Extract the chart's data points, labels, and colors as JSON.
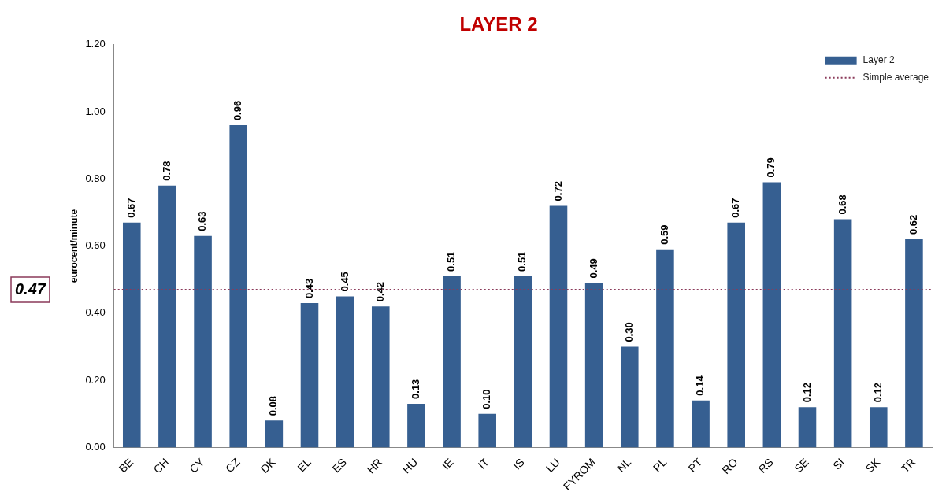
{
  "chart_data": {
    "type": "bar",
    "title": "LAYER 2",
    "ylabel": "eurocent/minute",
    "categories": [
      "BE",
      "CH",
      "CY",
      "CZ",
      "DK",
      "EL",
      "ES",
      "HR",
      "HU",
      "IE",
      "IT",
      "IS",
      "LU",
      "FYROM",
      "NL",
      "PL",
      "PT",
      "RO",
      "RS",
      "SE",
      "SI",
      "SK",
      "TR"
    ],
    "series": [
      {
        "name": "Layer 2",
        "color": "#365f91",
        "values": [
          0.67,
          0.78,
          0.63,
          0.96,
          0.08,
          0.43,
          0.45,
          0.42,
          0.13,
          0.51,
          0.1,
          0.51,
          0.72,
          0.49,
          0.3,
          0.59,
          0.14,
          0.67,
          0.79,
          0.12,
          0.68,
          0.12,
          0.62
        ],
        "value_labels": [
          "0.67",
          "0.78",
          "0.63",
          "0.96",
          "0.08",
          "0.43",
          "0.45",
          "0.42",
          "0.13",
          "0.51",
          "0.10",
          "0.51",
          "0.72",
          "0.49",
          "0.30",
          "0.59",
          "0.14",
          "0.67",
          "0.79",
          "0.12",
          "0.68",
          "0.12",
          "0.62"
        ]
      }
    ],
    "ylim": [
      0,
      1.2
    ],
    "yticks": [
      {
        "value": 0,
        "label": "0.00"
      },
      {
        "value": 0.2,
        "label": "0.20"
      },
      {
        "value": 0.4,
        "label": "0.40"
      },
      {
        "value": 0.6,
        "label": "0.60"
      },
      {
        "value": 0.8,
        "label": "0.80"
      },
      {
        "value": 1.0,
        "label": "1.00"
      },
      {
        "value": 1.2,
        "label": "1.20"
      }
    ],
    "ref_lines": [
      {
        "axis": "y",
        "value": 0.47,
        "label": "Simple average",
        "color": "#8b3a5a",
        "line_style": "dotted"
      }
    ],
    "annotations": [
      "0.47"
    ],
    "legend": "top right"
  }
}
